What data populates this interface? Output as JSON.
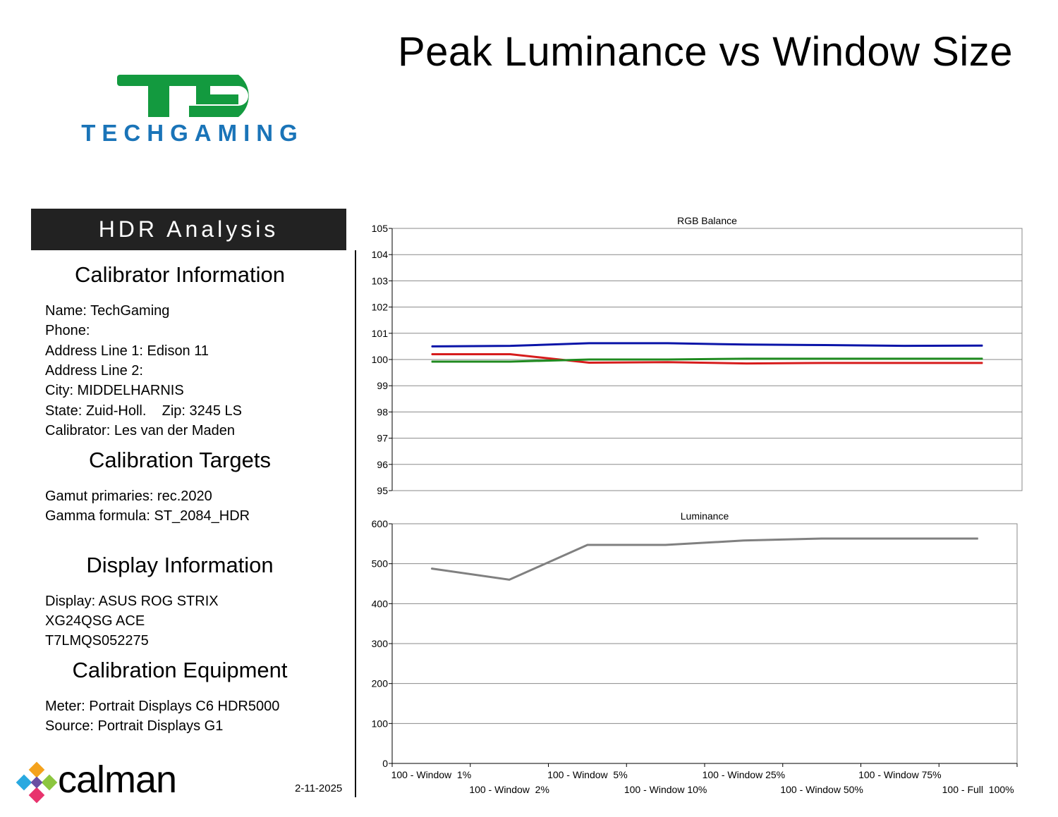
{
  "page": {
    "title": "Peak Luminance vs Window Size"
  },
  "brand": {
    "logo_text": "TECHGAMING",
    "logo_mark": "TE",
    "logo_green": "#139a3f",
    "logo_blue": "#1a74b8"
  },
  "header": {
    "label": "HDR Analysis"
  },
  "sections": {
    "calibrator": {
      "title": "Calibrator Information",
      "lines": [
        "Name: TechGaming",
        "Phone:",
        "Address Line 1: Edison 11",
        "Address Line 2:",
        "City: MIDDELHARNIS",
        "State: Zuid-Holl.    Zip: 3245 LS",
        "Calibrator: Les van der Maden"
      ]
    },
    "targets": {
      "title": "Calibration Targets",
      "lines": [
        "Gamut primaries: rec.2020",
        "Gamma formula: ST_2084_HDR"
      ]
    },
    "display": {
      "title": "Display Information",
      "lines": [
        "Display: ASUS ROG STRIX",
        "XG24QSG ACE",
        "T7LMQS052275"
      ]
    },
    "equipment": {
      "title": "Calibration Equipment",
      "lines": [
        "Meter: Portrait Displays C6 HDR5000",
        "Source: Portrait Displays G1"
      ]
    }
  },
  "footer": {
    "calman": "calman",
    "date": "2-11-2025"
  },
  "chart_data": [
    {
      "type": "line",
      "title": "RGB Balance",
      "ylim": [
        95,
        105
      ],
      "yticks": [
        95,
        96,
        97,
        98,
        99,
        100,
        101,
        102,
        103,
        104,
        105
      ],
      "grid": true,
      "categories": [
        "100 - Window  1%",
        "100 - Window  2%",
        "100 - Window  5%",
        "100 - Window 10%",
        "100 - Window 25%",
        "100 - Window 50%",
        "100 - Window 75%",
        "100 - Full  100%"
      ],
      "series": [
        {
          "color": "#0a14a8",
          "values": [
            100.5,
            100.52,
            100.62,
            100.62,
            100.57,
            100.55,
            100.52,
            100.53
          ]
        },
        {
          "color": "#d61c1c",
          "values": [
            100.2,
            100.2,
            99.88,
            99.9,
            99.85,
            99.87,
            99.87,
            99.87
          ]
        },
        {
          "color": "#1f8a1f",
          "values": [
            99.92,
            99.92,
            100.0,
            100.0,
            100.03,
            100.03,
            100.03,
            100.03
          ]
        }
      ]
    },
    {
      "type": "line",
      "title": "Luminance",
      "ylim": [
        0,
        600
      ],
      "yticks": [
        0,
        100,
        200,
        300,
        400,
        500,
        600
      ],
      "grid": true,
      "categories": [
        "100 - Window  1%",
        "100 - Window  2%",
        "100 - Window  5%",
        "100 - Window 10%",
        "100 - Window 25%",
        "100 - Window 50%",
        "100 - Window 75%",
        "100 - Full  100%"
      ],
      "series": [
        {
          "color": "#808080",
          "values": [
            488,
            460,
            547,
            547,
            558,
            563,
            563,
            563
          ]
        }
      ]
    }
  ]
}
